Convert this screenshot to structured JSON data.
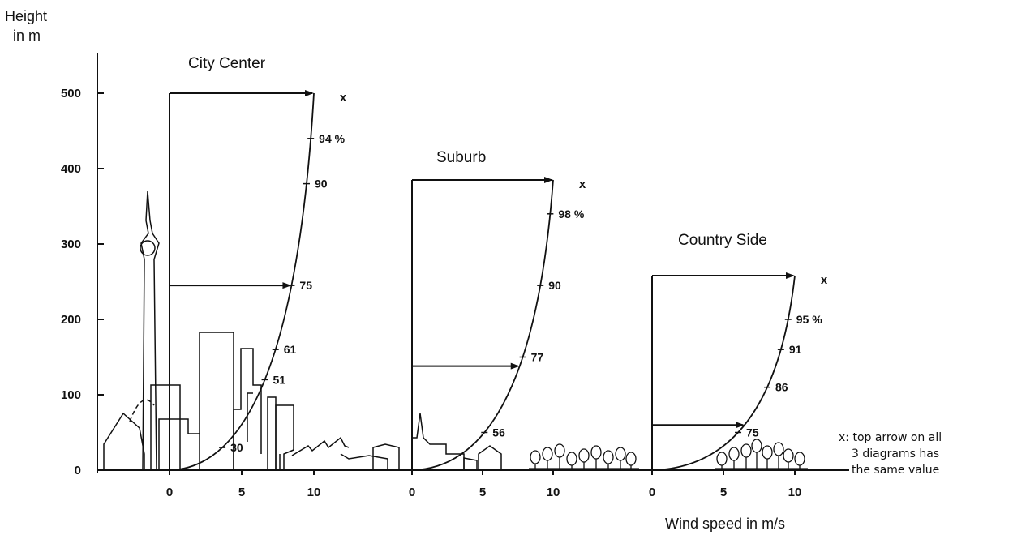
{
  "title": "",
  "y_axis": {
    "label_line1": "Height",
    "label_line2": "in m",
    "ticks": [
      "0",
      "100",
      "200",
      "300",
      "400",
      "500"
    ],
    "range": [
      0,
      500
    ]
  },
  "x_axis": {
    "label": "Wind speed in m/s",
    "tick_labels": [
      "0",
      "5",
      "10"
    ]
  },
  "note": {
    "line1": "x:  top arrow on all",
    "line2": "3 diagrams has",
    "line3": "the same value"
  },
  "chart_data": {
    "type": "line",
    "xlabel": "Wind speed in m/s",
    "ylabel": "Height in m",
    "ylim": [
      0,
      500
    ],
    "panels": [
      {
        "title": "City Center",
        "xlim": [
          0,
          10
        ],
        "gradient_height": 500,
        "top_marker": "x",
        "percent_labels": [
          {
            "text": "94 %",
            "height": 440
          },
          {
            "text": "90",
            "height": 380
          },
          {
            "text": "75",
            "height": 245
          },
          {
            "text": "61",
            "height": 160
          },
          {
            "text": "51",
            "height": 120
          },
          {
            "text": "30",
            "height": 30
          }
        ],
        "arrows": [
          {
            "height": 500,
            "wind_speed": 10
          },
          {
            "height": 245,
            "wind_speed": 7.5
          }
        ]
      },
      {
        "title": "Suburb",
        "xlim": [
          0,
          10
        ],
        "gradient_height": 385,
        "top_marker": "x",
        "percent_labels": [
          {
            "text": "98 %",
            "height": 340
          },
          {
            "text": "90",
            "height": 245
          },
          {
            "text": "77",
            "height": 150
          },
          {
            "text": "56",
            "height": 50
          }
        ],
        "arrows": [
          {
            "height": 385,
            "wind_speed": 10
          },
          {
            "height": 138,
            "wind_speed": 7.7
          }
        ]
      },
      {
        "title": "Country Side",
        "xlim": [
          0,
          10
        ],
        "gradient_height": 258,
        "top_marker": "x",
        "percent_labels": [
          {
            "text": "95 %",
            "height": 200
          },
          {
            "text": "91",
            "height": 160
          },
          {
            "text": "86",
            "height": 110
          },
          {
            "text": "75",
            "height": 50
          }
        ],
        "arrows": [
          {
            "height": 258,
            "wind_speed": 10
          },
          {
            "height": 60,
            "wind_speed": 7.5
          }
        ]
      }
    ]
  }
}
